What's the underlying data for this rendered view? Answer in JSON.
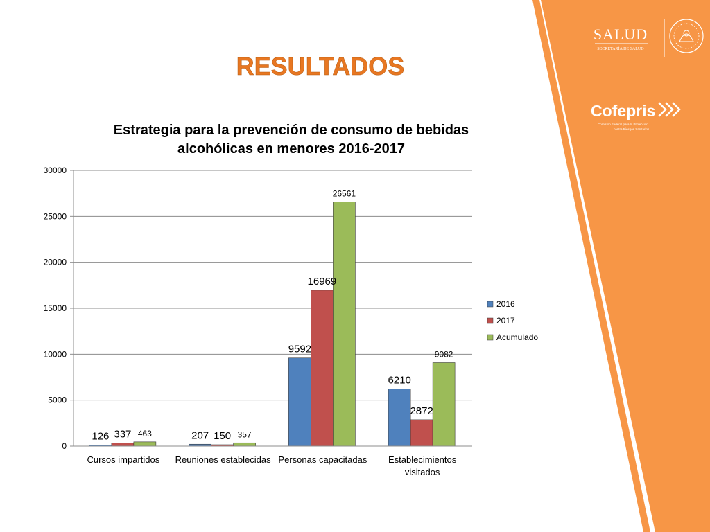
{
  "slide": {
    "heading": "RESULTADOS",
    "heading_color": "#e87722",
    "accent_color": "#f79646"
  },
  "logos": {
    "salud": {
      "name": "SALUD",
      "subtitle": "SECRETARÍA DE SALUD"
    },
    "cofepris": {
      "name": "Cofepris",
      "line1": "Comisión Federal para la Protección",
      "line2": "contra Riesgos Sanitarios"
    }
  },
  "chart_data": {
    "type": "bar",
    "title_line1": "Estrategia para la prevención de consumo de bebidas",
    "title_line2": "alcohólicas en menores 2016-2017",
    "categories": [
      [
        "Cursos impartidos"
      ],
      [
        "Reuniones establecidas"
      ],
      [
        "Personas capacitadas"
      ],
      [
        "Establecimientos",
        "visitados"
      ]
    ],
    "series": [
      {
        "name": "2016",
        "color": "#4f81bd",
        "values": [
          126,
          207,
          9592,
          6210
        ]
      },
      {
        "name": "2017",
        "color": "#c0504d",
        "values": [
          337,
          150,
          16969,
          2872
        ]
      },
      {
        "name": "Acumulado",
        "color": "#9bbb59",
        "values": [
          463,
          357,
          26561,
          9082
        ]
      }
    ],
    "ylim": [
      0,
      30000
    ],
    "yticks": [
      "0",
      "5000",
      "10000",
      "15000",
      "20000",
      "25000",
      "30000"
    ],
    "grid": true,
    "legend": "right"
  }
}
